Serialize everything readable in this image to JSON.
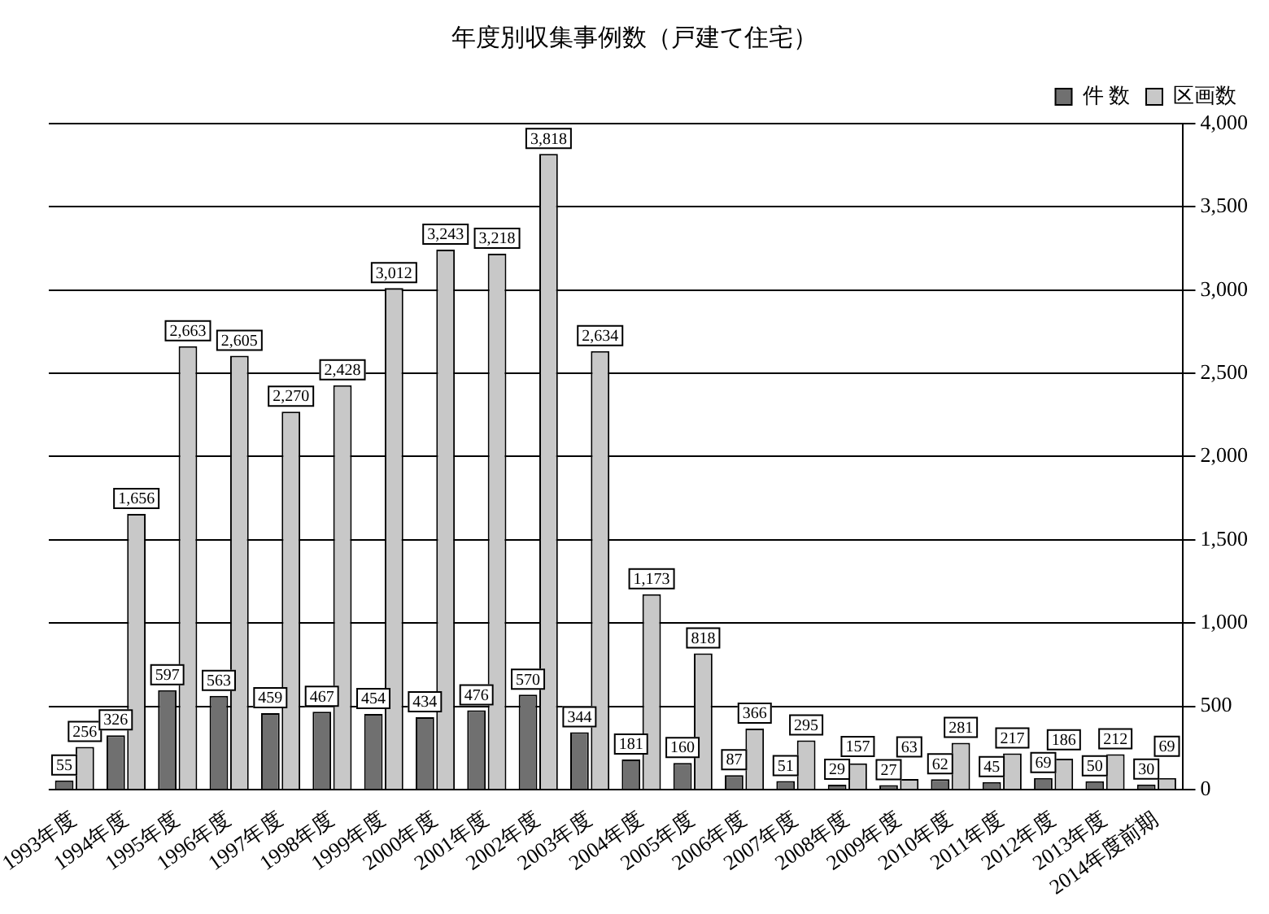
{
  "chart_data": {
    "type": "bar",
    "title": "年度別収集事例数（戸建て住宅）",
    "categories": [
      "1993年度",
      "1994年度",
      "1995年度",
      "1996年度",
      "1997年度",
      "1998年度",
      "1999年度",
      "2000年度",
      "2001年度",
      "2002年度",
      "2003年度",
      "2004年度",
      "2005年度",
      "2006年度",
      "2007年度",
      "2008年度",
      "2009年度",
      "2010年度",
      "2011年度",
      "2012年度",
      "2013年度",
      "2014年度前期"
    ],
    "series": [
      {
        "name": "件 数",
        "color": "#707070",
        "values": [
          55,
          326,
          597,
          563,
          459,
          467,
          454,
          434,
          476,
          570,
          344,
          181,
          160,
          87,
          51,
          29,
          27,
          62,
          45,
          69,
          50,
          30
        ],
        "value_labels": [
          "55",
          "326",
          "597",
          "563",
          "459",
          "467",
          "454",
          "434",
          "476",
          "570",
          "344",
          "181",
          "160",
          "87",
          "51",
          "29",
          "27",
          "62",
          "45",
          "69",
          "50",
          "30"
        ]
      },
      {
        "name": "区画数",
        "color": "#c8c8c8",
        "values": [
          256,
          1656,
          2663,
          2605,
          2270,
          2428,
          3012,
          3243,
          3218,
          3818,
          2634,
          1173,
          818,
          366,
          295,
          157,
          63,
          281,
          217,
          186,
          212,
          69
        ],
        "value_labels": [
          "256",
          "1,656",
          "2,663",
          "2,605",
          "2,270",
          "2,428",
          "3,012",
          "3,243",
          "3,218",
          "3,818",
          "2,634",
          "1,173",
          "818",
          "366",
          "295",
          "157",
          "63",
          "281",
          "217",
          "186",
          "212",
          "69"
        ]
      }
    ],
    "ylim": [
      0,
      4000
    ],
    "yticks": [
      0,
      500,
      {
        "value": 1000,
        "label": "1,000"
      },
      {
        "value": 1500,
        "label": "1,500"
      },
      {
        "value": 2000,
        "label": "2,000"
      },
      {
        "value": 2500,
        "label": "2,500"
      },
      {
        "value": 3000,
        "label": "3,000"
      },
      {
        "value": 3500,
        "label": "3,500"
      },
      {
        "value": 4000,
        "label": "4,000"
      }
    ],
    "grid": "y",
    "legend": "top right"
  }
}
